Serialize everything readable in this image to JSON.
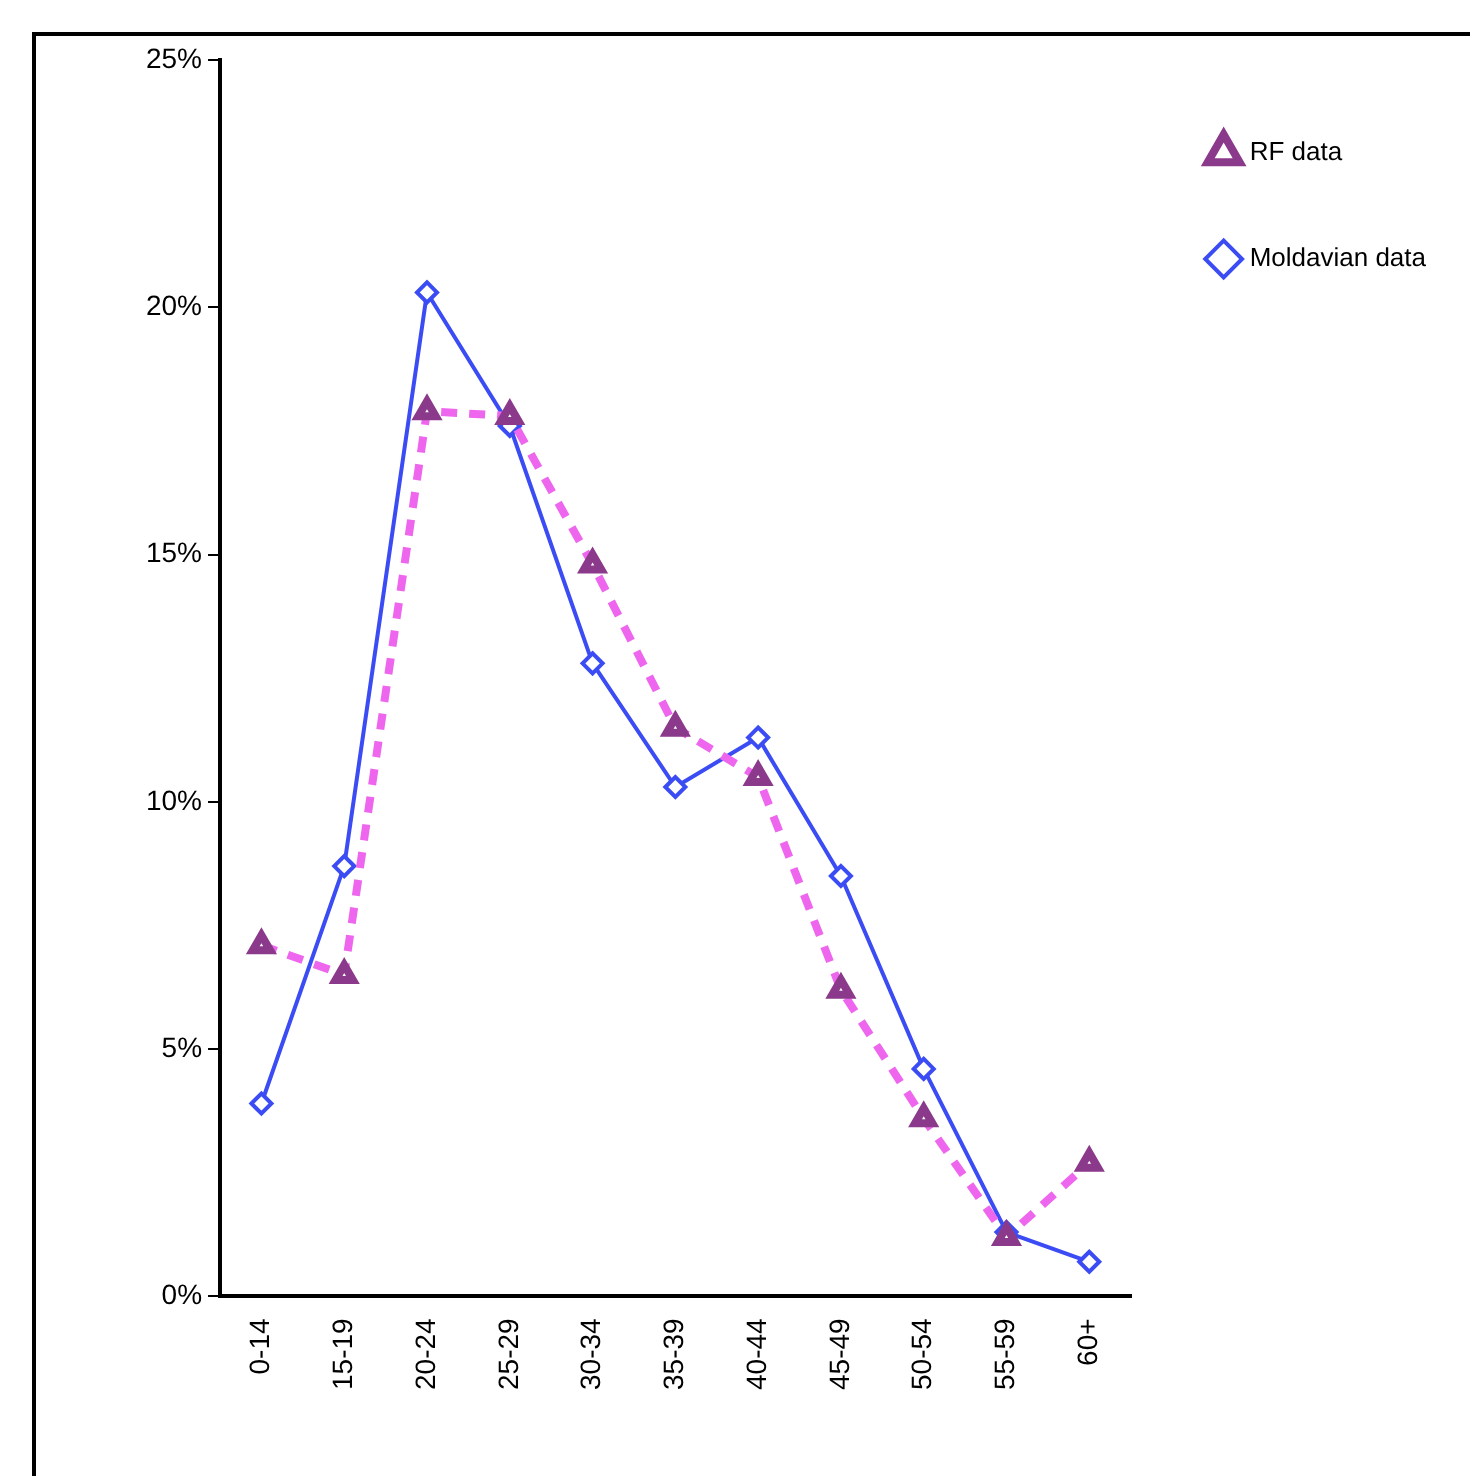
{
  "chart_data": {
    "type": "line",
    "categories": [
      "0-14",
      "15-19",
      "20-24",
      "25-29",
      "30-34",
      "35-39",
      "40-44",
      "45-49",
      "50-54",
      "55-59",
      "60+"
    ],
    "series": [
      {
        "name": "Moldavian data",
        "color": "#3b4cf4",
        "marker": "diamond",
        "line_style": "solid",
        "values": [
          3.9,
          8.7,
          20.3,
          17.6,
          12.8,
          10.3,
          11.3,
          8.5,
          4.6,
          1.3,
          0.7
        ]
      },
      {
        "name": "RF data",
        "color": "#ee66ee",
        "marker": "triangle",
        "line_style": "dashed",
        "values": [
          7.1,
          6.5,
          17.9,
          17.8,
          14.8,
          11.5,
          10.5,
          6.2,
          3.6,
          1.2,
          2.7
        ]
      }
    ],
    "ylim": [
      0,
      25
    ],
    "yticks": [
      {
        "value": 0,
        "label": "0%"
      },
      {
        "value": 5,
        "label": "5%"
      },
      {
        "value": 10,
        "label": "10%"
      },
      {
        "value": 15,
        "label": "15%"
      },
      {
        "value": 20,
        "label": "20%"
      },
      {
        "value": 25,
        "label": "25%"
      }
    ],
    "grid": false,
    "legend": "top right"
  }
}
